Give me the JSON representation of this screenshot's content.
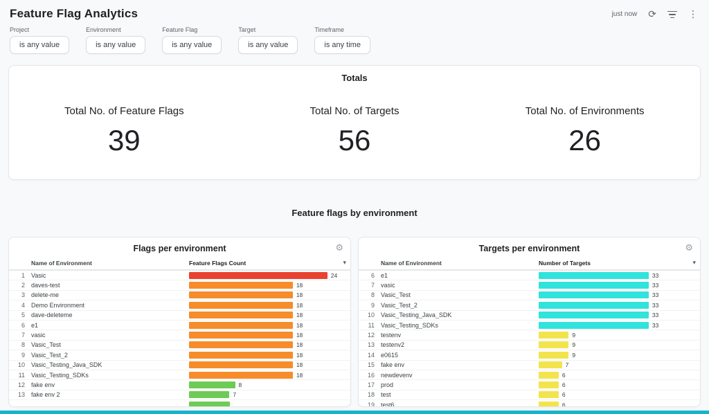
{
  "colors": {
    "page_bg": "#f8f9fa",
    "footer_strip": "#16b3cb",
    "bar_red": "#e8432f",
    "bar_orange": "#f78c2a",
    "bar_green": "#6ecb56",
    "bar_cyan": "#30e3dc",
    "bar_yellow": "#f3e44d"
  },
  "header": {
    "title": "Feature Flag Analytics",
    "refresh_status": "just now"
  },
  "icons": {
    "refresh": "⟳",
    "more_menu": "⋮",
    "gear": "⚙",
    "sort_chevron": "▾"
  },
  "filters": [
    {
      "label": "Project",
      "value": "is any value"
    },
    {
      "label": "Environment",
      "value": "is any value"
    },
    {
      "label": "Feature Flag",
      "value": "is any value"
    },
    {
      "label": "Target",
      "value": "is any value"
    },
    {
      "label": "Timeframe",
      "value": "is any time"
    }
  ],
  "totals": {
    "title": "Totals",
    "stats": [
      {
        "label": "Total No. of Feature Flags",
        "value": "39"
      },
      {
        "label": "Total No. of Targets",
        "value": "56"
      },
      {
        "label": "Total No. of Environments",
        "value": "26"
      }
    ]
  },
  "section_title": "Feature flags by environment",
  "chart_data": [
    {
      "type": "bar",
      "title": "Flags per environment",
      "columns": [
        "Name of Environment",
        "Feature Flags Count"
      ],
      "max_value": 24,
      "partial_next_color": "#6ecb56",
      "rows": [
        {
          "i": 1,
          "name": "Vasic",
          "value": 24,
          "color": "#e8432f"
        },
        {
          "i": 2,
          "name": "daves-test",
          "value": 18,
          "color": "#f78c2a"
        },
        {
          "i": 3,
          "name": "delete-me",
          "value": 18,
          "color": "#f78c2a"
        },
        {
          "i": 4,
          "name": "Demo Environment",
          "value": 18,
          "color": "#f78c2a"
        },
        {
          "i": 5,
          "name": "dave-deleteme",
          "value": 18,
          "color": "#f78c2a"
        },
        {
          "i": 6,
          "name": "e1",
          "value": 18,
          "color": "#f78c2a"
        },
        {
          "i": 7,
          "name": "vasic",
          "value": 18,
          "color": "#f78c2a"
        },
        {
          "i": 8,
          "name": "Vasic_Test",
          "value": 18,
          "color": "#f78c2a"
        },
        {
          "i": 9,
          "name": "Vasic_Test_2",
          "value": 18,
          "color": "#f78c2a"
        },
        {
          "i": 10,
          "name": "Vasic_Testing_Java_SDK",
          "value": 18,
          "color": "#f78c2a"
        },
        {
          "i": 11,
          "name": "Vasic_Testing_SDKs",
          "value": 18,
          "color": "#f78c2a"
        },
        {
          "i": 12,
          "name": "fake env",
          "value": 8,
          "color": "#6ecb56"
        },
        {
          "i": 13,
          "name": "fake env 2",
          "value": 7,
          "color": "#6ecb56"
        }
      ]
    },
    {
      "type": "bar",
      "title": "Targets per environment",
      "columns": [
        "Name of Environment",
        "Number of Targets"
      ],
      "max_value": 33,
      "rows": [
        {
          "i": 6,
          "name": "e1",
          "value": 33,
          "color": "#30e3dc"
        },
        {
          "i": 7,
          "name": "vasic",
          "value": 33,
          "color": "#30e3dc"
        },
        {
          "i": 8,
          "name": "Vasic_Test",
          "value": 33,
          "color": "#30e3dc"
        },
        {
          "i": 9,
          "name": "Vasic_Test_2",
          "value": 33,
          "color": "#30e3dc"
        },
        {
          "i": 10,
          "name": "Vasic_Testing_Java_SDK",
          "value": 33,
          "color": "#30e3dc"
        },
        {
          "i": 11,
          "name": "Vasic_Testing_SDKs",
          "value": 33,
          "color": "#30e3dc"
        },
        {
          "i": 12,
          "name": "testenv",
          "value": 9,
          "color": "#f3e44d"
        },
        {
          "i": 13,
          "name": "testenv2",
          "value": 9,
          "color": "#f3e44d"
        },
        {
          "i": 14,
          "name": "e0615",
          "value": 9,
          "color": "#f3e44d"
        },
        {
          "i": 15,
          "name": "fake env",
          "value": 7,
          "color": "#f3e44d"
        },
        {
          "i": 16,
          "name": "newdevenv",
          "value": 6,
          "color": "#f3e44d"
        },
        {
          "i": 17,
          "name": "prod",
          "value": 6,
          "color": "#f3e44d"
        },
        {
          "i": 18,
          "name": "test",
          "value": 6,
          "color": "#f3e44d"
        },
        {
          "i": 19,
          "name": "test6",
          "value": 6,
          "color": "#f3e44d"
        }
      ]
    }
  ]
}
